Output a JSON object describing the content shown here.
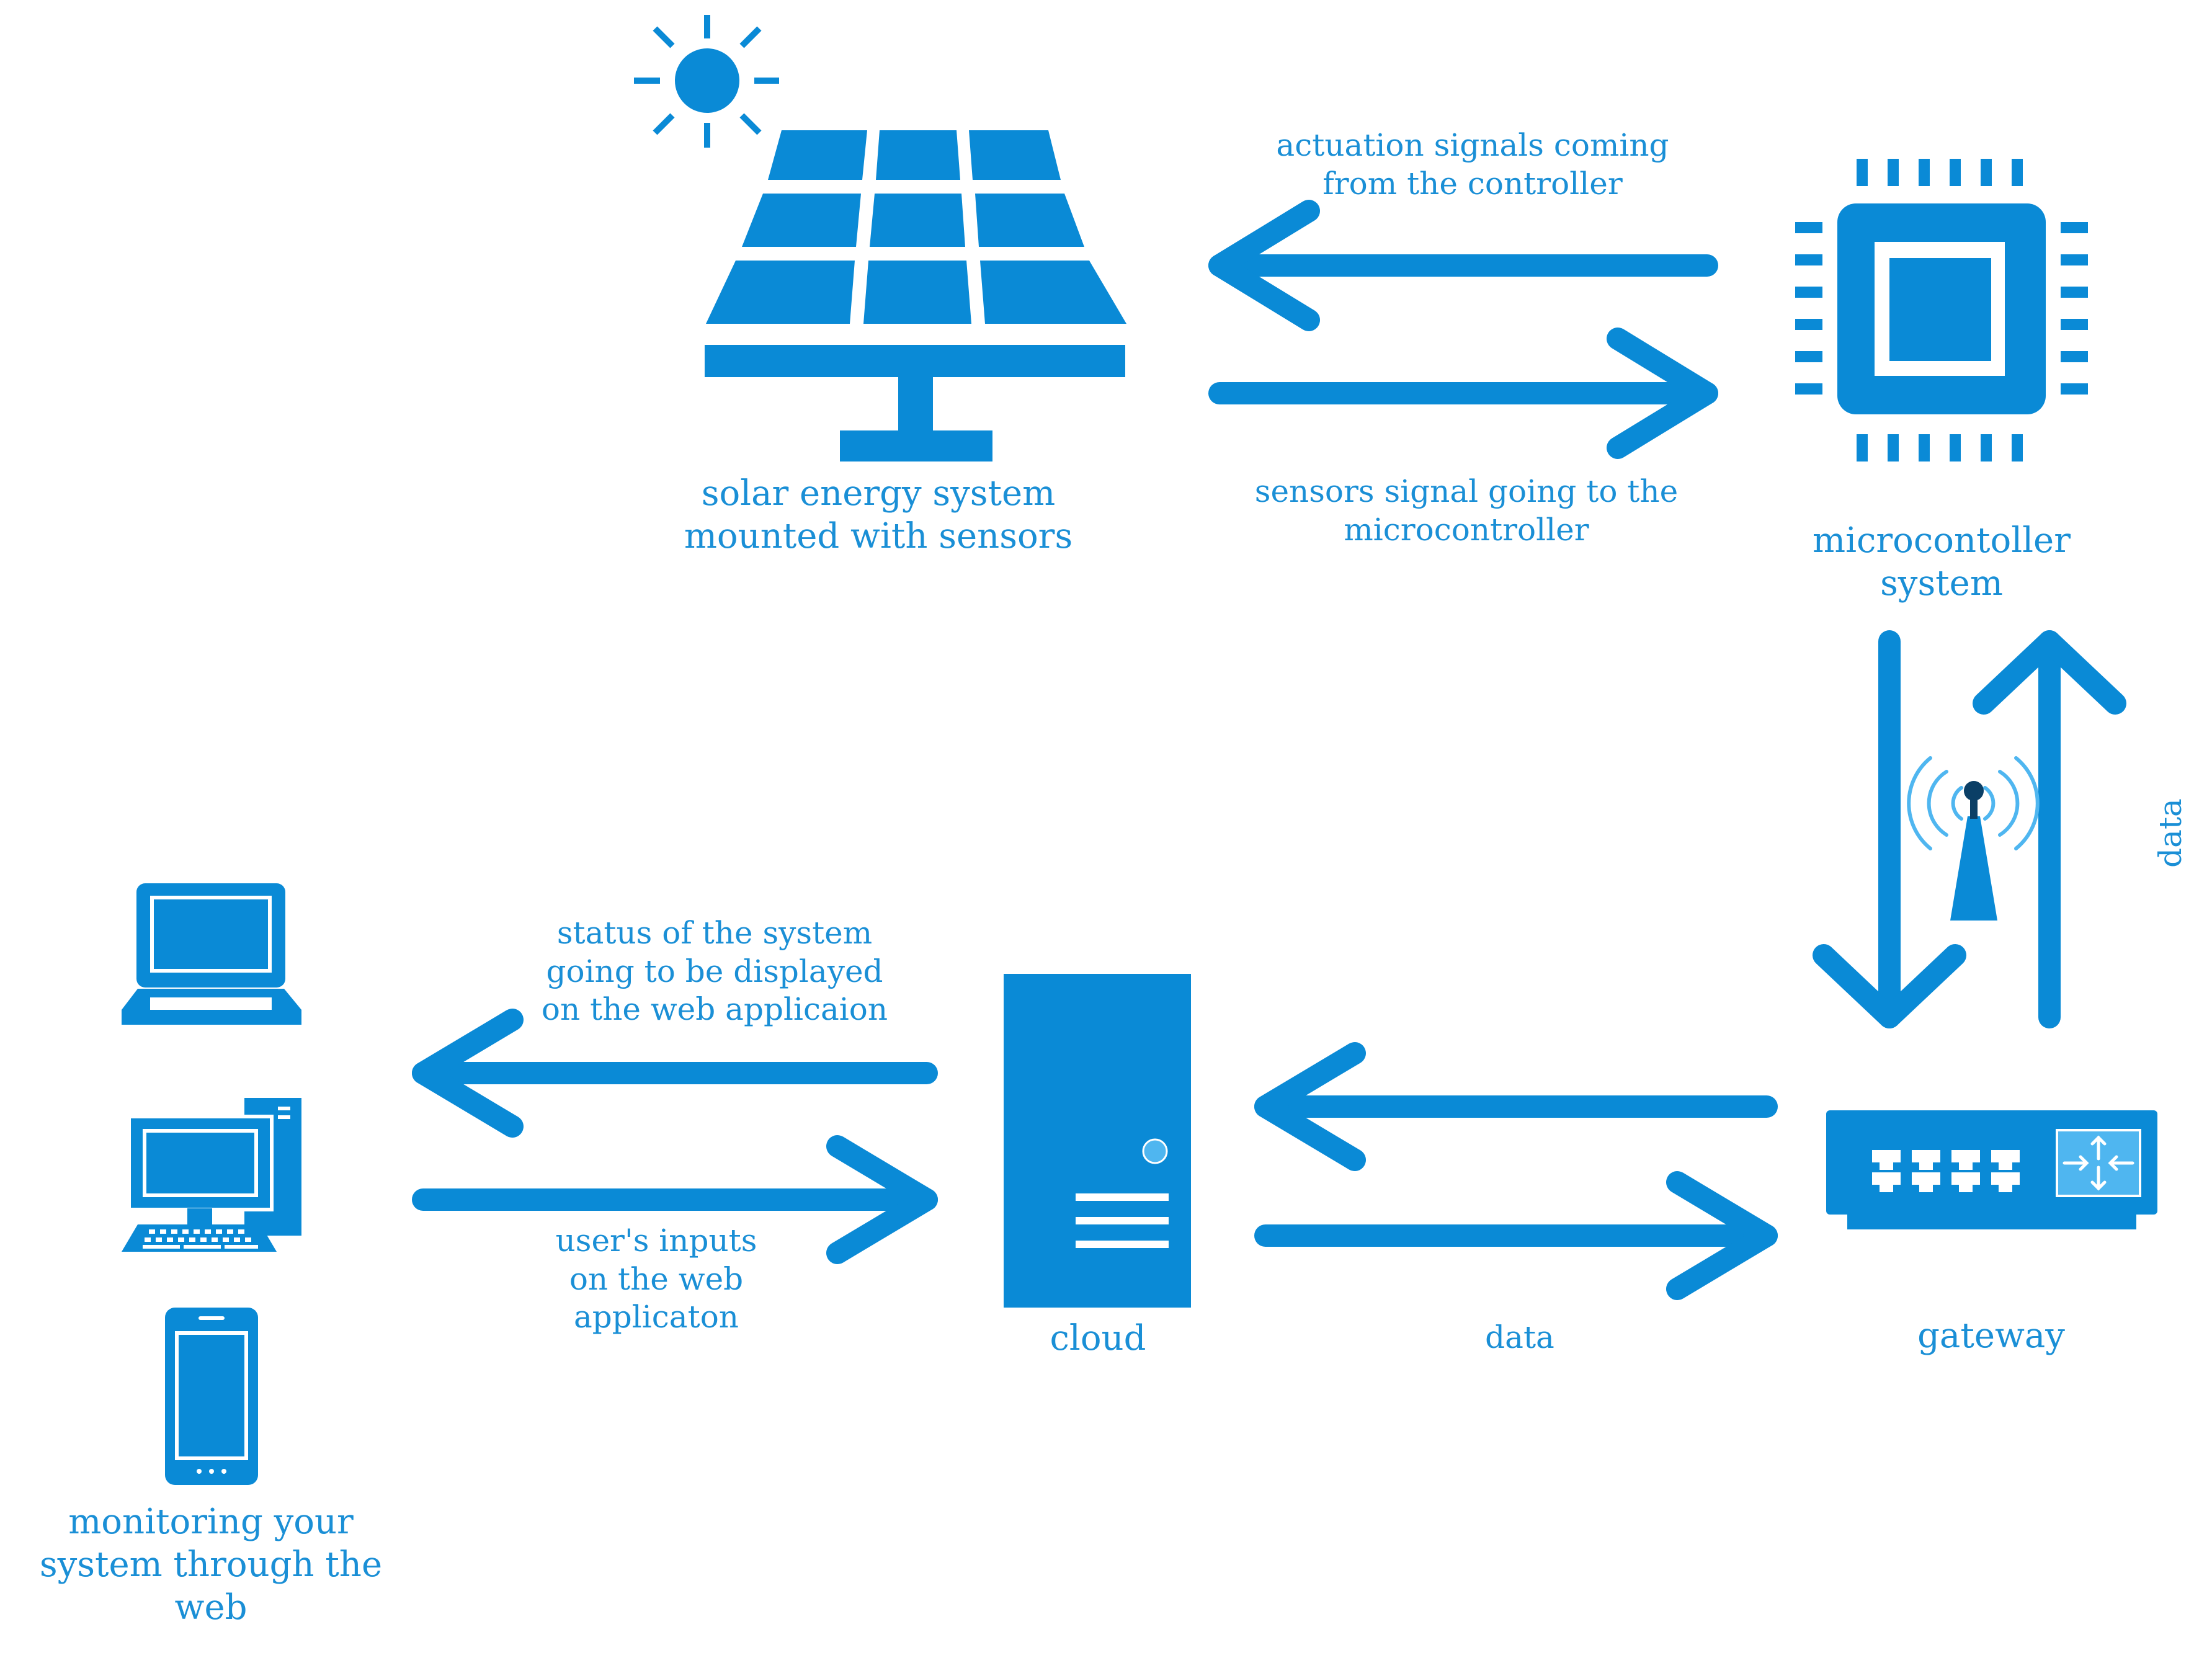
{
  "colors": {
    "primary": "#0a8ad6",
    "light": "#4fb6f0",
    "dark_accent": "#0b3f66",
    "text": "#1a8fd6"
  },
  "icons": {
    "sun": "sun-icon",
    "solar_panel": "solar-panel-icon",
    "microcontroller": "microchip-icon",
    "antenna": "antenna-icon",
    "gateway": "router-icon",
    "cloud_server": "server-tower-icon",
    "laptop": "laptop-icon",
    "desktop": "desktop-computer-icon",
    "phone": "smartphone-icon"
  },
  "labels": {
    "solar_system": "solar energy system\nmounted with sensors",
    "actuation": "actuation signals coming\nfrom the controller",
    "sensors_signal": "sensors signal going to the\nmicrocontroller",
    "microcontroller": "microcontoller\nsystem",
    "data_vertical": "data",
    "status": "status of the system\ngoing to be displayed\non the web applicaion",
    "user_inputs": "user's inputs\non the web\napplicaton",
    "cloud": "cloud",
    "data_horizontal": "data",
    "gateway": "gateway",
    "monitoring": "monitoring your\nsystem through the\nweb"
  }
}
